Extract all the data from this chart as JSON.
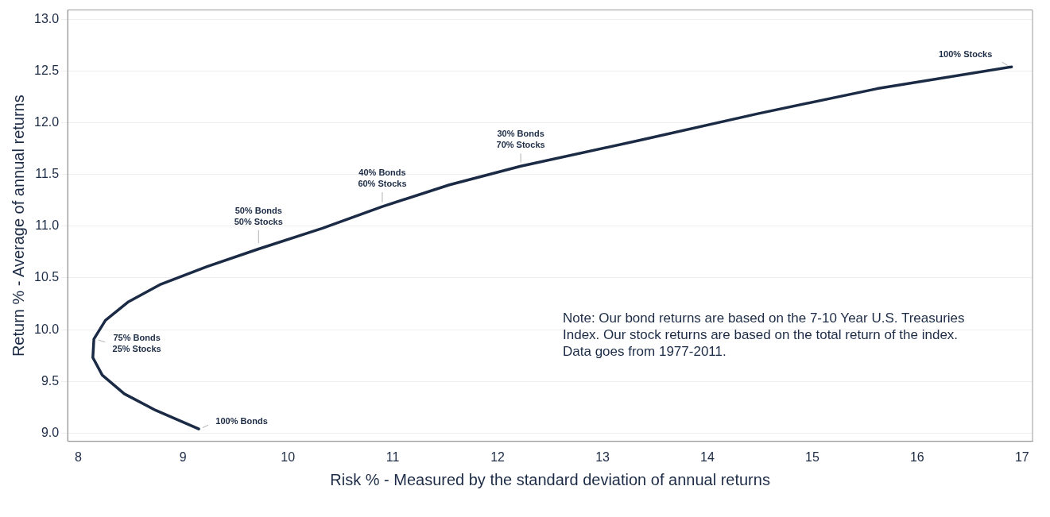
{
  "chart_data": {
    "type": "line",
    "xlabel": "Risk % - Measured by the standard deviation of annual returns",
    "ylabel": "Return % - Average of annual returns",
    "series": [
      {
        "color": "#1c2b45",
        "x": [
          9.15,
          8.74,
          8.44,
          8.23,
          8.14,
          8.15,
          8.26,
          8.48,
          8.79,
          9.23,
          9.72,
          10.33,
          10.9,
          11.54,
          12.22,
          13.35,
          14.49,
          15.62,
          16.9
        ],
        "values": [
          9.04,
          9.22,
          9.38,
          9.56,
          9.73,
          9.91,
          10.09,
          10.27,
          10.44,
          10.61,
          10.78,
          10.98,
          11.19,
          11.4,
          11.58,
          11.83,
          12.09,
          12.33,
          12.54
        ]
      }
    ],
    "xlim": [
      7.9,
      17.1
    ],
    "xticks": [
      8,
      9,
      10,
      11,
      12,
      13,
      14,
      15,
      16,
      17
    ],
    "ylim": [
      8.92,
      13.09
    ],
    "yticks": [
      {
        "value": 9,
        "label": "9.0"
      },
      9.5,
      {
        "value": 10,
        "label": "10.0"
      },
      10.5,
      {
        "value": 11,
        "label": "11.0"
      },
      11.5,
      {
        "value": 12,
        "label": "12.0"
      },
      12.5,
      {
        "value": 13,
        "label": "13.0"
      }
    ],
    "grid": "y",
    "legend": false,
    "marker": "none",
    "line_style": "solid",
    "annotations": [
      {
        "text": "100% Stocks",
        "x": 16.9,
        "y": 12.54
      },
      {
        "text": "30% Bonds\n70% Stocks",
        "x": 12.22,
        "y": 11.58
      },
      {
        "text": "40% Bonds\n60% Stocks",
        "x": 10.9,
        "y": 11.19
      },
      {
        "text": "50% Bonds\n50% Stocks",
        "x": 9.72,
        "y": 10.78
      },
      {
        "text": "75% Bonds\n25% Stocks",
        "x": 8.15,
        "y": 9.91
      },
      {
        "text": "100% Bonds",
        "x": 9.15,
        "y": 9.04
      },
      "Note:  Our bond returns are based on the 7-10 Year U.S. Treasuries Index.  Our stock returns are based on the total return of the index.  Data goes from 1977-2011."
    ]
  }
}
